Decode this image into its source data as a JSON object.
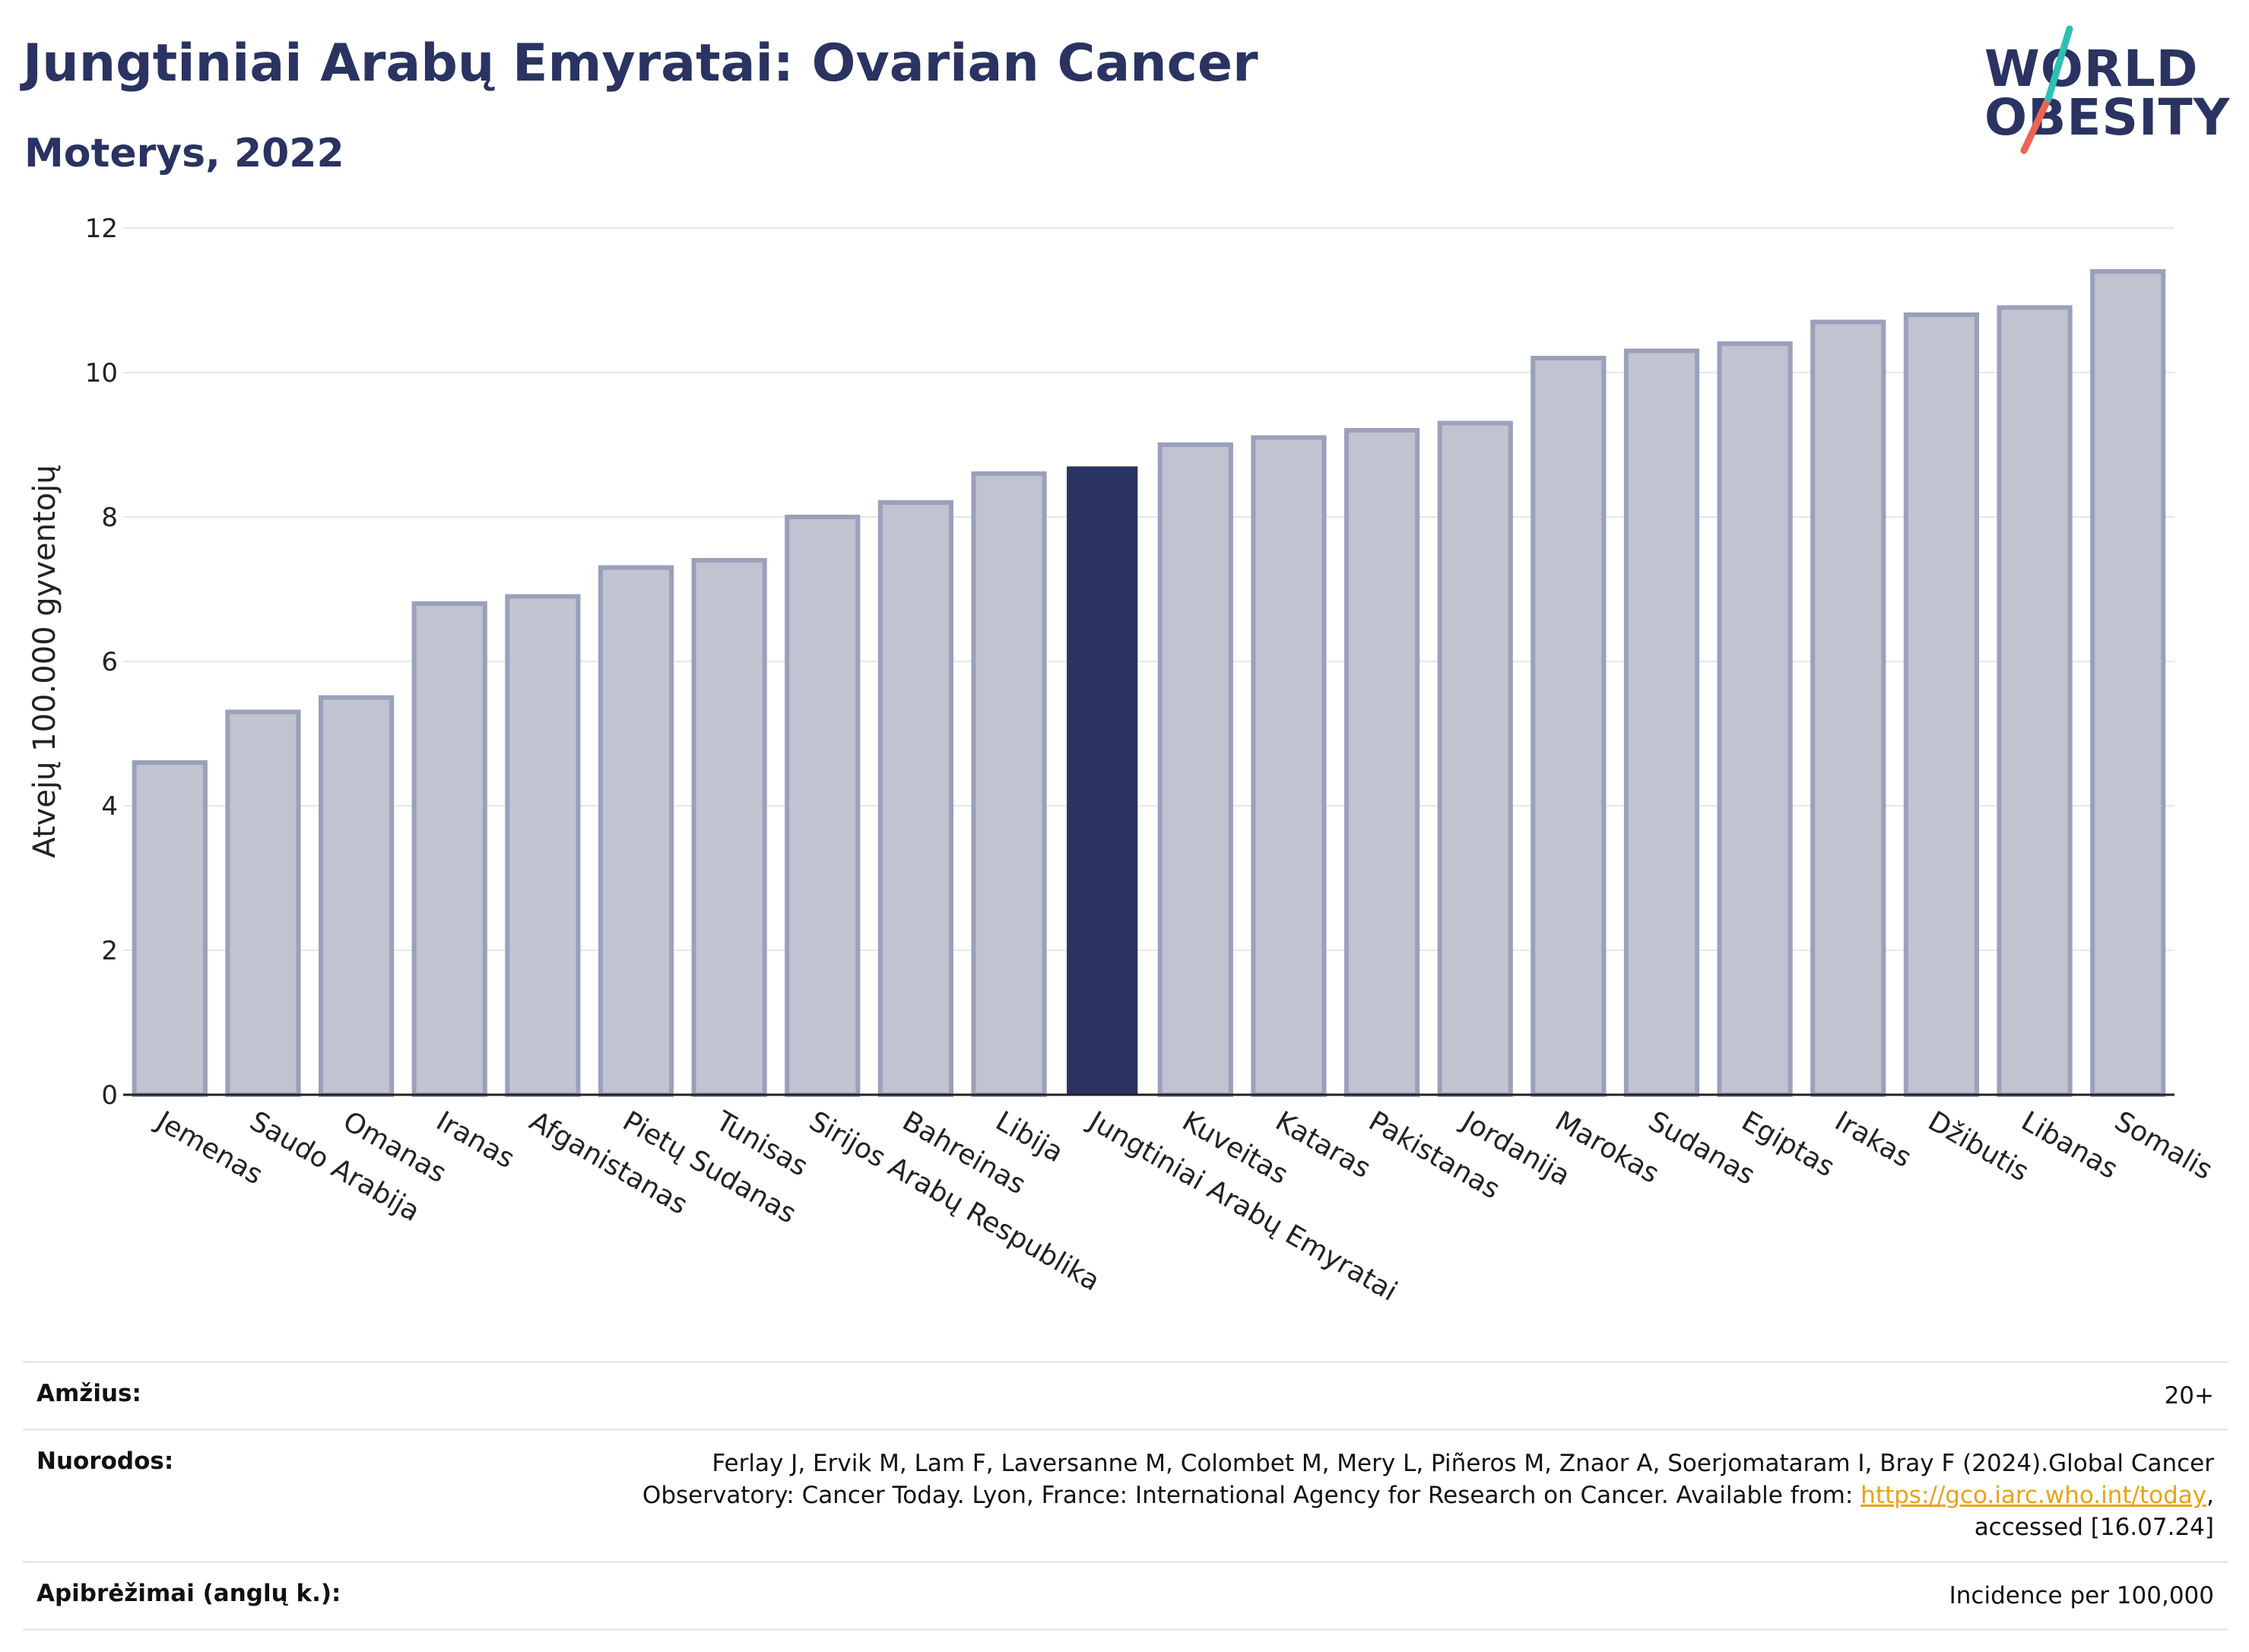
{
  "header": {
    "title": "Jungtiniai Arabų Emyratai: Ovarian Cancer",
    "subtitle": "Moterys, 2022"
  },
  "logo": {
    "line1": "WORLD",
    "line2": "OBESITY",
    "slash_color_top": "#2ebfb3",
    "slash_color_bottom": "#ee6352"
  },
  "colors": {
    "highlight": "#2a3361",
    "bar_fill": "#c0c3d0",
    "bar_outline": "#9ba0bb",
    "grid": "#e6e7ee"
  },
  "chart_data": {
    "type": "bar",
    "title": "Jungtiniai Arabų Emyratai: Ovarian Cancer",
    "subtitle": "Moterys, 2022",
    "xlabel": "",
    "ylabel": "Atvejų 100.000 gyventojų",
    "ylim": [
      0,
      12
    ],
    "yticks": [
      0,
      2,
      4,
      6,
      8,
      10,
      12
    ],
    "grid": true,
    "highlight_category": "Jungtiniai Arabų Emyratai",
    "categories": [
      "Jemenas",
      "Saudo Arabija",
      "Omanas",
      "Iranas",
      "Afganistanas",
      "Pietų Sudanas",
      "Tunisas",
      "Sirijos Arabų Respublika",
      "Bahreinas",
      "Libija",
      "Jungtiniai Arabų Emyratai",
      "Kuveitas",
      "Kataras",
      "Pakistanas",
      "Jordanija",
      "Marokas",
      "Sudanas",
      "Egiptas",
      "Irakas",
      "Džibutis",
      "Libanas",
      "Somalis"
    ],
    "values": [
      4.6,
      5.3,
      5.5,
      6.8,
      6.9,
      7.3,
      7.4,
      8.0,
      8.2,
      8.6,
      8.7,
      9.0,
      9.1,
      9.2,
      9.3,
      10.2,
      10.3,
      10.4,
      10.7,
      10.8,
      10.9,
      11.4
    ]
  },
  "info": {
    "age_label": "Amžius:",
    "age_value": "20+",
    "refs_label": "Nuorodos:",
    "refs_text_1": "Ferlay J, Ervik M, Lam F, Laversanne M, Colombet M, Mery L, Piñeros M, Znaor A, Soerjomataram I, Bray F (2024).Global Cancer",
    "refs_text_2": "Observatory: Cancer Today. Lyon, France: International Agency for Research on Cancer. Available from: ",
    "refs_link": "https://gco.iarc.who.int/today",
    "refs_text_3": ",",
    "refs_text_4": "accessed [16.07.24]",
    "defs_label": "Apibrėžimai (anglų k.):",
    "defs_value": "Incidence per 100,000"
  }
}
